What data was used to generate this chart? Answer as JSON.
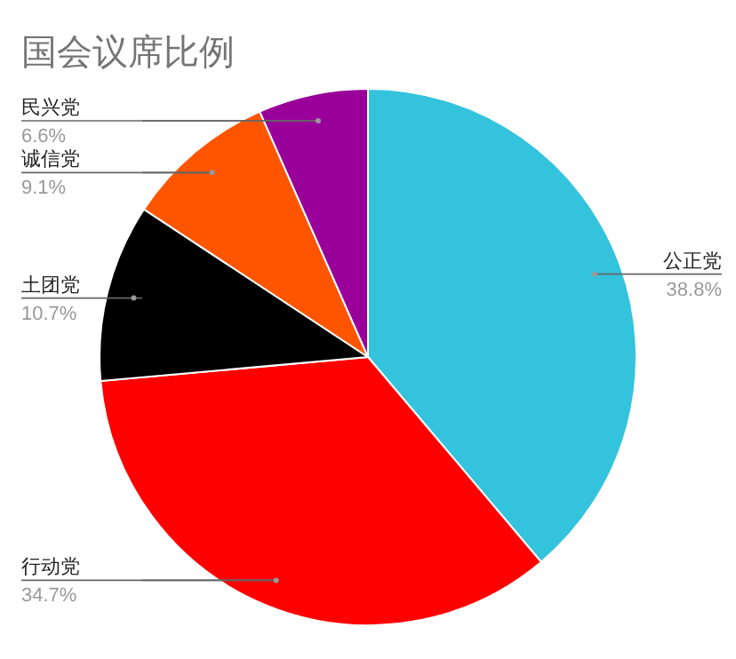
{
  "chart_data": {
    "type": "pie",
    "title": "国会议席比例",
    "categories": [
      "公正党",
      "行动党",
      "土团党",
      "诚信党",
      "民兴党"
    ],
    "values": [
      38.8,
      34.7,
      10.7,
      9.1,
      6.6
    ],
    "value_labels": [
      "38.8%",
      "34.7%",
      "10.7%",
      "9.1%",
      "6.6%"
    ],
    "colors": [
      "#33c3dd",
      "#ff0000",
      "#000000",
      "#ff5500",
      "#990099"
    ]
  }
}
